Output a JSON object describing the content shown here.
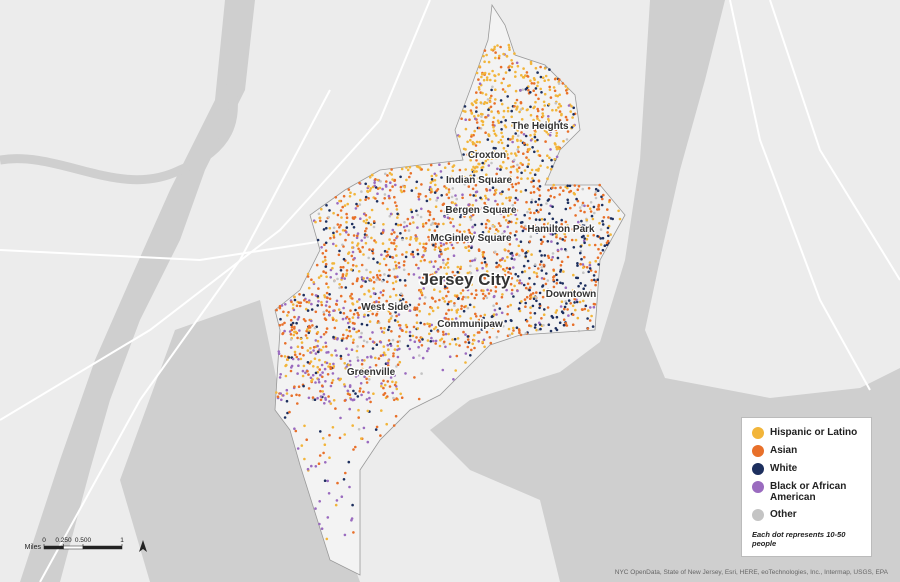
{
  "map": {
    "title": "Jersey City",
    "neighborhoods": [
      "The Heights",
      "Croxton",
      "Indian Square",
      "Bergen Square",
      "McGinley Square",
      "Hamilton Park",
      "Downtown",
      "West Side",
      "Communipaw",
      "Greenville"
    ],
    "legend": {
      "items": [
        {
          "label": "Hispanic or Latino",
          "color": "#f2b53a"
        },
        {
          "label": "Asian",
          "color": "#e8702a"
        },
        {
          "label": "White",
          "color": "#1d2f5e"
        },
        {
          "label": "Black or African American",
          "color": "#9a6bbf"
        },
        {
          "label": "Other",
          "color": "#c4c4c4"
        }
      ],
      "note": "Each dot represents 10-50 people"
    },
    "scale_bar": {
      "unit": "Miles",
      "ticks": [
        0,
        {
          "value": 0.25,
          "label": "0.250"
        },
        {
          "value": 0.5,
          "label": "0.500"
        },
        1
      ]
    },
    "attribution": "NYC OpenData, State of New Jersey, Esri, HERE, eoTechnologies, Inc., Intermap, USGS, EPA"
  }
}
